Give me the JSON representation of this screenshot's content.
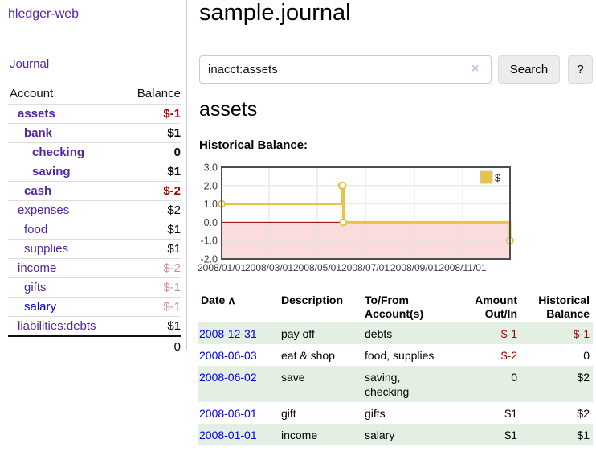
{
  "app_title": "hledger-web",
  "sidebar": {
    "journal_link": "Journal",
    "table": {
      "account_header": "Account",
      "balance_header": "Balance",
      "rows": [
        {
          "name": "assets",
          "balance": "$-1"
        },
        {
          "name": "bank",
          "balance": "$1"
        },
        {
          "name": "checking",
          "balance": "0"
        },
        {
          "name": "saving",
          "balance": "$1"
        },
        {
          "name": "cash",
          "balance": "$-2"
        },
        {
          "name": "expenses",
          "balance": "$2"
        },
        {
          "name": "food",
          "balance": "$1"
        },
        {
          "name": "supplies",
          "balance": "$1"
        },
        {
          "name": "income",
          "balance": "$-2"
        },
        {
          "name": "gifts",
          "balance": "$-1"
        },
        {
          "name": "salary",
          "balance": "$-1"
        },
        {
          "name": "liabilities:debts",
          "balance": "$1"
        }
      ],
      "total": "0"
    }
  },
  "main": {
    "title": "sample.journal",
    "search": {
      "value": "inacct:assets",
      "clear_icon": "×",
      "search_button": "Search",
      "help_button": "?"
    },
    "account_heading": "assets",
    "chart_label": "Historical Balance:",
    "register": {
      "sort_icon": "∧",
      "headers": {
        "date": "Date",
        "description": "Description",
        "accounts": "To/From\nAccount(s)",
        "amount": "Amount\nOut/In",
        "balance": "Historical\nBalance"
      },
      "rows": [
        {
          "date": "2008-12-31",
          "description": "pay off",
          "accounts": "debts",
          "amount": "$-1",
          "balance": "$-1"
        },
        {
          "date": "2008-06-03",
          "description": "eat & shop",
          "accounts": "food, supplies",
          "amount": "$-2",
          "balance": "0"
        },
        {
          "date": "2008-06-02",
          "description": "save",
          "accounts": "saving,\nchecking",
          "amount": "0",
          "balance": "$2"
        },
        {
          "date": "2008-06-01",
          "description": "gift",
          "accounts": "gifts",
          "amount": "$1",
          "balance": "$2"
        },
        {
          "date": "2008-01-01",
          "description": "income",
          "accounts": "salary",
          "amount": "$1",
          "balance": "$1"
        }
      ]
    }
  },
  "colors": {
    "visited_link": "#5226a5",
    "unvisited_link": "#0000e6",
    "negative_amount": "#a40000",
    "negative_amount_dim": "#c9908f",
    "row_highlight_green": "#e3efe3",
    "chart_line": "#e8c34c"
  },
  "chart_data": {
    "type": "line",
    "step": true,
    "title": "Historical Balance:",
    "x_domain": [
      "2008-01-01",
      "2008-12-31"
    ],
    "ylim": [
      -2,
      3
    ],
    "grid": true,
    "series": [
      {
        "name": "$",
        "color": "#e8c34c",
        "points": [
          {
            "x": "2008-01-01",
            "y": 1
          },
          {
            "x": "2008-06-01",
            "y": 2
          },
          {
            "x": "2008-06-02",
            "y": 2
          },
          {
            "x": "2008-06-03",
            "y": 0
          },
          {
            "x": "2008-12-31",
            "y": -1
          }
        ]
      }
    ],
    "yticks": [
      {
        "value": 3,
        "label": "3.0"
      },
      {
        "value": 2,
        "label": "2.0"
      },
      {
        "value": 1,
        "label": "1.0"
      },
      {
        "value": 0,
        "label": "0.0"
      },
      {
        "value": -1,
        "label": "-1.0"
      },
      {
        "value": -2,
        "label": "-2.0"
      }
    ],
    "xticks": [
      {
        "date": "2008-01-01",
        "label": "2008/01/01"
      },
      {
        "date": "2008-03-01",
        "label": "2008/03/01"
      },
      {
        "date": "2008-05-01",
        "label": "2008/05/01"
      },
      {
        "date": "2008-07-01",
        "label": "2008/07/01"
      },
      {
        "date": "2008-09-01",
        "label": "2008/09/01"
      },
      {
        "date": "2008-11-01",
        "label": "2008/11/01"
      }
    ],
    "legend": {
      "label": "$",
      "position": "top-right"
    },
    "colors": {
      "negative_region": "#fbdcdc",
      "zero_line": "#8b0000",
      "grid": "#e2e2e2",
      "border": "#4d4d4d"
    }
  }
}
